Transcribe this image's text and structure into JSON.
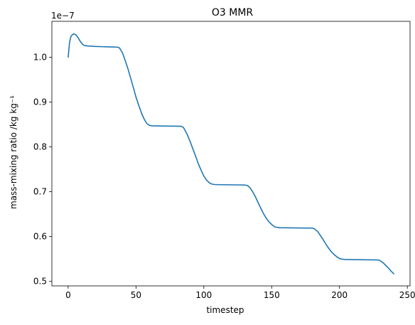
{
  "chart_data": {
    "type": "line",
    "title": "O3 MMR",
    "xlabel": "timestep",
    "ylabel": "mass-mixing ratio /kg kg⁻¹",
    "y_offset_label": "1e−7",
    "xlim": [
      -12,
      252
    ],
    "ylim": [
      0.49,
      1.08
    ],
    "xticks": [
      0,
      50,
      100,
      150,
      200,
      250
    ],
    "yticks": [
      0.5,
      0.6,
      0.7,
      0.8,
      0.9,
      1.0
    ],
    "xtick_labels": [
      "0",
      "50",
      "100",
      "150",
      "200",
      "250"
    ],
    "ytick_labels": [
      "0.5",
      "0.6",
      "0.7",
      "0.8",
      "0.9",
      "1.0"
    ],
    "grid": false,
    "line_color": "#1f77b4",
    "series": [
      {
        "x": [
          0,
          1,
          2,
          3,
          4,
          5,
          6,
          7,
          8,
          9,
          10,
          11,
          12,
          15,
          20,
          25,
          30,
          33,
          35,
          36,
          37,
          38,
          40,
          42,
          44,
          46,
          48,
          50,
          52,
          54,
          56,
          58,
          60,
          62,
          65,
          70,
          75,
          80,
          83,
          84,
          85,
          86,
          88,
          90,
          92,
          94,
          96,
          98,
          100,
          102,
          104,
          106,
          108,
          110,
          115,
          120,
          125,
          130,
          132,
          133,
          134,
          136,
          138,
          140,
          142,
          144,
          146,
          148,
          150,
          152,
          154,
          156,
          158,
          160,
          165,
          170,
          175,
          180,
          181,
          182,
          184,
          186,
          188,
          190,
          192,
          194,
          196,
          198,
          200,
          202,
          204,
          206,
          210,
          215,
          220,
          225,
          228,
          229,
          230,
          232,
          234,
          236,
          238,
          240
        ],
        "y": [
          1.0,
          1.032,
          1.046,
          1.05,
          1.052,
          1.051,
          1.049,
          1.045,
          1.04,
          1.035,
          1.031,
          1.028,
          1.026,
          1.025,
          1.024,
          1.0235,
          1.023,
          1.0228,
          1.0225,
          1.0225,
          1.022,
          1.02,
          1.01,
          0.993,
          0.975,
          0.954,
          0.933,
          0.911,
          0.893,
          0.876,
          0.862,
          0.852,
          0.848,
          0.847,
          0.8468,
          0.8466,
          0.8464,
          0.8462,
          0.846,
          0.845,
          0.843,
          0.838,
          0.826,
          0.811,
          0.795,
          0.779,
          0.762,
          0.748,
          0.735,
          0.726,
          0.72,
          0.717,
          0.716,
          0.7158,
          0.7156,
          0.7154,
          0.7152,
          0.715,
          0.714,
          0.712,
          0.709,
          0.7,
          0.689,
          0.676,
          0.663,
          0.651,
          0.641,
          0.633,
          0.627,
          0.622,
          0.6205,
          0.6198,
          0.6196,
          0.6195,
          0.6193,
          0.6191,
          0.619,
          0.6189,
          0.618,
          0.616,
          0.611,
          0.602,
          0.593,
          0.583,
          0.574,
          0.566,
          0.56,
          0.555,
          0.551,
          0.5495,
          0.549,
          0.5488,
          0.5486,
          0.5484,
          0.5482,
          0.548,
          0.5478,
          0.5475,
          0.546,
          0.542,
          0.536,
          0.53,
          0.523,
          0.517
        ]
      }
    ]
  }
}
